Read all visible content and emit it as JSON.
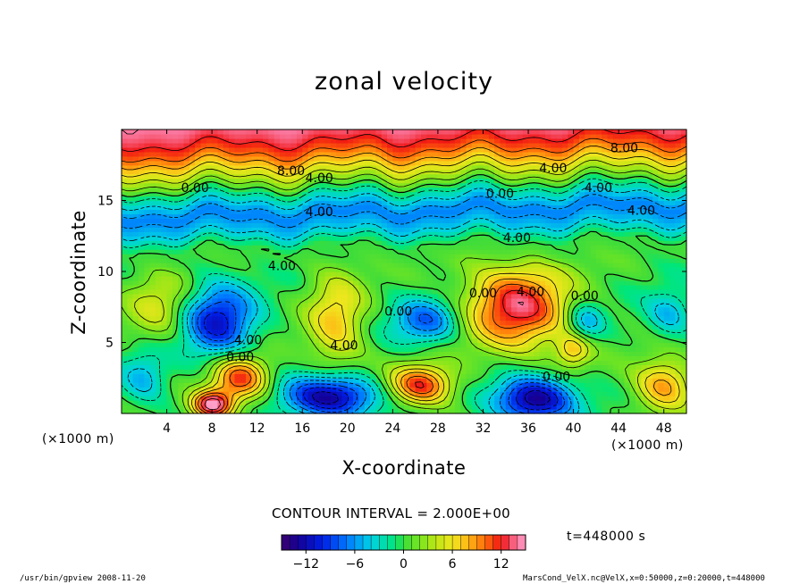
{
  "chart_data": {
    "type": "heatmap",
    "title": "zonal velocity",
    "xlabel": "X-coordinate",
    "ylabel": "Z-coordinate",
    "x_unit_label_left": "(×1000 m)",
    "x_unit_label_right": "(×1000 m)",
    "x_ticks": [
      4,
      8,
      12,
      16,
      20,
      24,
      28,
      32,
      36,
      40,
      44,
      48
    ],
    "y_ticks": [
      5,
      10,
      15
    ],
    "xlim": [
      0,
      50
    ],
    "ylim": [
      0,
      20
    ],
    "contour_interval_text": "CONTOUR INTERVAL = 2.000E+00",
    "contour_labels": [
      {
        "x": 44.5,
        "z": 18.7,
        "text": "8.00"
      },
      {
        "x": 15.0,
        "z": 17.1,
        "text": "8.00"
      },
      {
        "x": 17.5,
        "z": 16.6,
        "text": "4.00"
      },
      {
        "x": 38.2,
        "z": 17.3,
        "text": "4.00"
      },
      {
        "x": 42.2,
        "z": 15.9,
        "text": "4.00"
      },
      {
        "x": 46.0,
        "z": 14.3,
        "text": "4.00"
      },
      {
        "x": 17.5,
        "z": 14.2,
        "text": "4.00"
      },
      {
        "x": 35.0,
        "z": 12.4,
        "text": "4.00"
      },
      {
        "x": 14.2,
        "z": 10.4,
        "text": "4.00"
      },
      {
        "x": 36.2,
        "z": 8.6,
        "text": "4.00"
      },
      {
        "x": 19.7,
        "z": 4.8,
        "text": "4.00"
      },
      {
        "x": 11.2,
        "z": 5.2,
        "text": "4.00"
      },
      {
        "x": 6.5,
        "z": 15.9,
        "text": "0.00"
      },
      {
        "x": 33.5,
        "z": 15.5,
        "text": "0.00"
      },
      {
        "x": 32.0,
        "z": 8.5,
        "text": "0.00"
      },
      {
        "x": 24.5,
        "z": 7.2,
        "text": "0.00"
      },
      {
        "x": 41.0,
        "z": 8.3,
        "text": "0.00"
      },
      {
        "x": 10.5,
        "z": 4.0,
        "text": "0.00"
      },
      {
        "x": 38.5,
        "z": 2.6,
        "text": "0.00"
      }
    ],
    "colorbar": {
      "min": -15,
      "max": 15,
      "ticks": [
        -12,
        -6,
        0,
        6,
        12
      ],
      "tick_labels": [
        "−12",
        "−6",
        "0",
        "6",
        "12"
      ]
    },
    "features": [
      {
        "x": 35,
        "z": 7.5,
        "value": 13,
        "extent_x": 4.5,
        "extent_z": 3.0
      },
      {
        "x": 19,
        "z": 6.5,
        "value": 7,
        "extent_x": 2.5,
        "extent_z": 3.5
      },
      {
        "x": 10.5,
        "z": 2.5,
        "value": 12,
        "extent_x": 2.5,
        "extent_z": 1.6
      },
      {
        "x": 8,
        "z": 0.6,
        "value": 15,
        "extent_x": 1.8,
        "extent_z": 1.0
      },
      {
        "x": 26.5,
        "z": 2.0,
        "value": 12,
        "extent_x": 2.8,
        "extent_z": 1.4
      },
      {
        "x": 40,
        "z": 4.5,
        "value": 7,
        "extent_x": 1.5,
        "extent_z": 1.2
      },
      {
        "x": 48,
        "z": 2.0,
        "value": 9,
        "extent_x": 2.5,
        "extent_z": 1.8
      },
      {
        "x": 3.5,
        "z": 7.5,
        "value": 5,
        "extent_x": 3.0,
        "extent_z": 2.5
      },
      {
        "x": 8.5,
        "z": 6.5,
        "value": -11,
        "extent_x": 3.2,
        "extent_z": 2.6
      },
      {
        "x": 27,
        "z": 6.5,
        "value": -8,
        "extent_x": 3.0,
        "extent_z": 1.6
      },
      {
        "x": 18.5,
        "z": 1.2,
        "value": -14,
        "extent_x": 4.0,
        "extent_z": 1.5
      },
      {
        "x": 36.5,
        "z": 1.0,
        "value": -14,
        "extent_x": 3.5,
        "extent_z": 1.6
      },
      {
        "x": 41,
        "z": 6.5,
        "value": -6,
        "extent_x": 1.6,
        "extent_z": 1.4
      },
      {
        "x": 2.0,
        "z": 2.5,
        "value": -5,
        "extent_x": 2.0,
        "extent_z": 1.8
      },
      {
        "x": 48.5,
        "z": 7.0,
        "value": -5,
        "extent_x": 2.0,
        "extent_z": 1.6
      }
    ],
    "bands": {
      "z_low_to_high_values_at_z": [
        {
          "z": 11.5,
          "value": 0
        },
        {
          "z": 12.5,
          "value": -4
        },
        {
          "z": 13.8,
          "value": -7
        },
        {
          "z": 15.2,
          "value": -2
        },
        {
          "z": 16.0,
          "value": 2
        },
        {
          "z": 17.0,
          "value": 6
        },
        {
          "z": 18.0,
          "value": 10
        },
        {
          "z": 19.2,
          "value": 13
        },
        {
          "z": 20.0,
          "value": 14
        }
      ]
    }
  },
  "footer": {
    "left": "/usr/bin/gpview   2008-11-20",
    "right": "MarsCond_VelX.nc@VelX,x=0:50000,z=0:20000,t=448000"
  },
  "time_label": "t=448000 s"
}
